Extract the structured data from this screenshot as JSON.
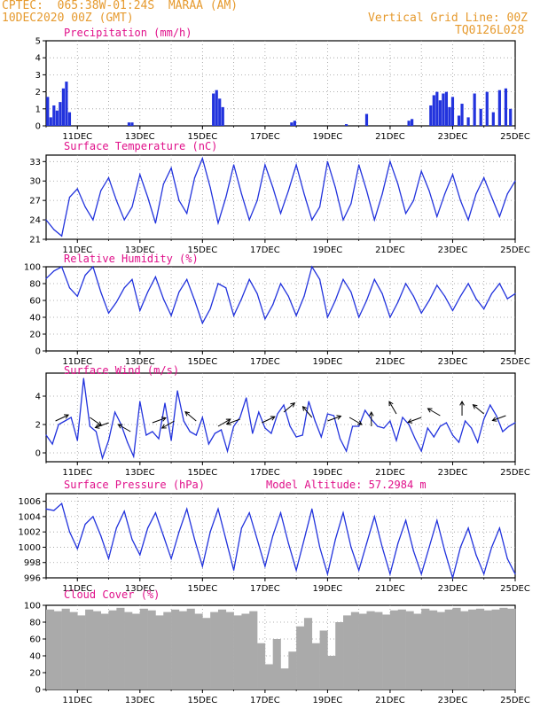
{
  "header": {
    "line1_left": "CPTEC:  065:38W-01:24S  MARAA (AM)",
    "line2_left": "10DEC2020 00Z (GMT)",
    "line2_right": "Vertical Grid Line: 00Z",
    "line3_right": "TQ0126L028"
  },
  "colors": {
    "header": "#e69a2e",
    "title": "#e0108a",
    "line": "#2233dd",
    "cloud": "#aaaaaa"
  },
  "x_ticks": [
    "11DEC",
    "13DEC",
    "15DEC",
    "17DEC",
    "19DEC",
    "21DEC",
    "23DEC",
    "25DEC"
  ],
  "chart_data": [
    {
      "type": "bar",
      "title": "Precipitation (mm/h)",
      "ylim": [
        0,
        5
      ],
      "yticks": [
        "0",
        "1",
        "2",
        "3",
        "4",
        "5"
      ],
      "x": [
        10.05,
        10.15,
        10.25,
        10.35,
        10.45,
        10.55,
        10.65,
        10.75,
        12.65,
        12.75,
        15.35,
        15.45,
        15.55,
        15.65,
        17.85,
        17.95,
        19.6,
        20.25,
        21.6,
        21.7,
        22.3,
        22.4,
        22.5,
        22.6,
        22.7,
        22.8,
        22.9,
        23.0,
        23.2,
        23.3,
        23.5,
        23.7,
        23.9,
        24.1,
        24.3,
        24.5,
        24.7,
        24.85
      ],
      "values": [
        1.7,
        0.5,
        1.2,
        0.9,
        1.4,
        2.2,
        2.6,
        0.8,
        0.2,
        0.2,
        1.9,
        2.1,
        1.6,
        1.1,
        0.2,
        0.3,
        0.1,
        0.7,
        0.3,
        0.4,
        1.2,
        1.8,
        2.0,
        1.5,
        1.9,
        2.0,
        1.1,
        1.7,
        0.6,
        1.3,
        0.5,
        1.9,
        1.0,
        2.0,
        0.8,
        2.1,
        2.2,
        1.0
      ]
    },
    {
      "type": "line",
      "title": "Surface Temperature (nC)",
      "ylim": [
        21,
        34
      ],
      "yticks": [
        "21",
        "24",
        "27",
        "30",
        "33"
      ],
      "x": [
        10.0,
        10.25,
        10.5,
        10.75,
        11.0,
        11.25,
        11.5,
        11.75,
        12.0,
        12.25,
        12.5,
        12.75,
        13.0,
        13.25,
        13.5,
        13.75,
        14.0,
        14.25,
        14.5,
        14.75,
        15.0,
        15.25,
        15.5,
        15.75,
        16.0,
        16.25,
        16.5,
        16.75,
        17.0,
        17.25,
        17.5,
        17.75,
        18.0,
        18.25,
        18.5,
        18.75,
        19.0,
        19.25,
        19.5,
        19.75,
        20.0,
        20.25,
        20.5,
        20.75,
        21.0,
        21.25,
        21.5,
        21.75,
        22.0,
        22.25,
        22.5,
        22.75,
        23.0,
        23.25,
        23.5,
        23.75,
        24.0,
        24.25,
        24.5,
        24.75,
        25.0
      ],
      "values": [
        24.0,
        22.5,
        21.5,
        27.5,
        28.8,
        26.0,
        24.0,
        28.5,
        30.5,
        27.0,
        24.0,
        26.0,
        31.0,
        27.5,
        23.5,
        29.5,
        32.0,
        27.0,
        25.0,
        30.5,
        33.5,
        29.0,
        23.5,
        27.5,
        32.5,
        28.0,
        24.0,
        27.0,
        32.5,
        29.0,
        25.0,
        28.5,
        32.5,
        28.0,
        24.0,
        26.0,
        33.0,
        29.0,
        24.0,
        26.5,
        32.5,
        28.5,
        24.0,
        28.0,
        33.0,
        29.5,
        25.0,
        27.0,
        31.5,
        28.5,
        24.5,
        28.0,
        31.0,
        27.0,
        24.0,
        28.0,
        30.5,
        27.5,
        24.5,
        28.0,
        30.0
      ]
    },
    {
      "type": "line",
      "title": "Relative Humidity (%)",
      "ylim": [
        0,
        100
      ],
      "yticks": [
        "0",
        "20",
        "40",
        "60",
        "80",
        "100"
      ],
      "x": [
        10.0,
        10.25,
        10.5,
        10.75,
        11.0,
        11.25,
        11.5,
        11.75,
        12.0,
        12.25,
        12.5,
        12.75,
        13.0,
        13.25,
        13.5,
        13.75,
        14.0,
        14.25,
        14.5,
        14.75,
        15.0,
        15.25,
        15.5,
        15.75,
        16.0,
        16.25,
        16.5,
        16.75,
        17.0,
        17.25,
        17.5,
        17.75,
        18.0,
        18.25,
        18.5,
        18.75,
        19.0,
        19.25,
        19.5,
        19.75,
        20.0,
        20.25,
        20.5,
        20.75,
        21.0,
        21.25,
        21.5,
        21.75,
        22.0,
        22.25,
        22.5,
        22.75,
        23.0,
        23.25,
        23.5,
        23.75,
        24.0,
        24.25,
        24.5,
        24.75,
        25.0
      ],
      "values": [
        86.0,
        95.0,
        100.0,
        75.0,
        65.0,
        90.0,
        100.0,
        70.0,
        45.0,
        58.0,
        75.0,
        85.0,
        48.0,
        70.0,
        88.0,
        62.0,
        42.0,
        70.0,
        85.0,
        60.0,
        33.0,
        50.0,
        80.0,
        75.0,
        42.0,
        62.0,
        85.0,
        68.0,
        38.0,
        55.0,
        80.0,
        65.0,
        42.0,
        65.0,
        100.0,
        85.0,
        40.0,
        60.0,
        85.0,
        70.0,
        40.0,
        60.0,
        85.0,
        68.0,
        40.0,
        58.0,
        80.0,
        65.0,
        45.0,
        60.0,
        78.0,
        65.0,
        48.0,
        65.0,
        80.0,
        62.0,
        50.0,
        68.0,
        80.0,
        62.0,
        68.0
      ]
    },
    {
      "type": "line",
      "title": "Surface Wind (m/s)",
      "ylim": [
        0,
        5
      ],
      "yticks": [
        "0",
        "2",
        "4"
      ],
      "x": [
        10.0,
        10.2,
        10.4,
        10.6,
        10.8,
        11.0,
        11.2,
        11.4,
        11.6,
        11.8,
        12.0,
        12.2,
        12.4,
        12.6,
        12.8,
        13.0,
        13.2,
        13.4,
        13.6,
        13.8,
        14.0,
        14.2,
        14.4,
        14.6,
        14.8,
        15.0,
        15.2,
        15.4,
        15.6,
        15.8,
        16.0,
        16.2,
        16.4,
        16.6,
        16.8,
        17.0,
        17.2,
        17.4,
        17.6,
        17.8,
        18.0,
        18.2,
        18.4,
        18.6,
        18.8,
        19.0,
        19.2,
        19.4,
        19.6,
        19.8,
        20.0,
        20.2,
        20.4,
        20.6,
        20.8,
        21.0,
        21.2,
        21.4,
        21.6,
        21.8,
        22.0,
        22.2,
        22.4,
        22.6,
        22.8,
        23.0,
        23.2,
        23.4,
        23.6,
        23.8,
        24.0,
        24.2,
        24.4,
        24.6,
        24.8,
        25.0
      ],
      "values": [
        1.5,
        1.0,
        2.1,
        2.3,
        2.5,
        1.2,
        4.7,
        2.0,
        1.7,
        0.2,
        1.2,
        2.8,
        2.1,
        1.1,
        0.3,
        3.4,
        1.5,
        1.7,
        1.3,
        3.3,
        1.2,
        4.0,
        2.3,
        1.7,
        1.5,
        2.5,
        1.0,
        1.6,
        1.8,
        0.6,
        2.0,
        2.5,
        3.6,
        1.6,
        2.8,
        1.9,
        1.6,
        2.7,
        3.2,
        2.0,
        1.4,
        1.5,
        3.4,
        2.3,
        1.4,
        2.7,
        2.6,
        1.3,
        0.6,
        2.0,
        2.0,
        2.9,
        2.4,
        2.0,
        1.9,
        2.3,
        1.2,
        2.5,
        2.1,
        1.3,
        0.6,
        1.9,
        1.4,
        2.0,
        2.2,
        1.5,
        1.1,
        2.3,
        1.9,
        1.1,
        2.4,
        3.2,
        2.6,
        1.7,
        2.0,
        2.2
      ]
    },
    {
      "type": "line",
      "title": "Surface Pressure (hPa)",
      "annotation": "Model Altitude: 57.2984 m",
      "ylim": [
        996,
        1007
      ],
      "yticks": [
        "996",
        "998",
        "1000",
        "1002",
        "1004",
        "1006"
      ],
      "x": [
        10.0,
        10.25,
        10.5,
        10.75,
        11.0,
        11.25,
        11.5,
        11.75,
        12.0,
        12.25,
        12.5,
        12.75,
        13.0,
        13.25,
        13.5,
        13.75,
        14.0,
        14.25,
        14.5,
        14.75,
        15.0,
        15.25,
        15.5,
        15.75,
        16.0,
        16.25,
        16.5,
        16.75,
        17.0,
        17.25,
        17.5,
        17.75,
        18.0,
        18.25,
        18.5,
        18.75,
        19.0,
        19.25,
        19.5,
        19.75,
        20.0,
        20.25,
        20.5,
        20.75,
        21.0,
        21.25,
        21.5,
        21.75,
        22.0,
        22.25,
        22.5,
        22.75,
        23.0,
        23.25,
        23.5,
        23.75,
        24.0,
        24.25,
        24.5,
        24.75,
        25.0
      ],
      "values": [
        1005.0,
        1004.8,
        1005.7,
        1002.0,
        999.8,
        1003.0,
        1004.0,
        1001.5,
        998.5,
        1002.5,
        1004.7,
        1001.0,
        999.0,
        1002.5,
        1004.5,
        1001.5,
        998.5,
        1002.0,
        1005.0,
        1001.0,
        997.5,
        1002.0,
        1005.0,
        1001.0,
        997.0,
        1002.5,
        1004.5,
        1001.0,
        997.5,
        1001.5,
        1004.5,
        1000.5,
        997.0,
        1001.0,
        1005.0,
        1000.0,
        996.5,
        1001.0,
        1004.5,
        1000.0,
        997.0,
        1000.5,
        1004.0,
        1000.0,
        996.5,
        1000.5,
        1003.5,
        999.5,
        996.5,
        1000.0,
        1003.5,
        999.5,
        996.0,
        1000.0,
        1002.5,
        999.0,
        996.5,
        1000.0,
        1002.5,
        998.5,
        996.5
      ]
    },
    {
      "type": "bar",
      "title": "Cloud Cover (%)",
      "ylim": [
        0,
        100
      ],
      "yticks": [
        "0",
        "20",
        "40",
        "60",
        "80",
        "100"
      ],
      "x": [
        10.0,
        10.25,
        10.5,
        10.75,
        11.0,
        11.25,
        11.5,
        11.75,
        12.0,
        12.25,
        12.5,
        12.75,
        13.0,
        13.25,
        13.5,
        13.75,
        14.0,
        14.25,
        14.5,
        14.75,
        15.0,
        15.25,
        15.5,
        15.75,
        16.0,
        16.25,
        16.5,
        16.75,
        17.0,
        17.25,
        17.5,
        17.75,
        18.0,
        18.25,
        18.5,
        18.75,
        19.0,
        19.25,
        19.5,
        19.75,
        20.0,
        20.25,
        20.5,
        20.75,
        21.0,
        21.25,
        21.5,
        21.75,
        22.0,
        22.25,
        22.5,
        22.75,
        23.0,
        23.25,
        23.5,
        23.75,
        24.0,
        24.25,
        24.5,
        24.75
      ],
      "values": [
        95,
        93,
        96,
        92,
        88,
        95,
        93,
        90,
        94,
        97,
        92,
        90,
        96,
        94,
        88,
        92,
        95,
        93,
        96,
        90,
        85,
        92,
        95,
        92,
        88,
        90,
        93,
        55,
        30,
        60,
        25,
        45,
        75,
        85,
        55,
        70,
        40,
        80,
        88,
        92,
        90,
        93,
        92,
        89,
        94,
        95,
        93,
        90,
        96,
        94,
        92,
        95,
        97,
        93,
        95,
        96,
        94,
        95,
        97,
        96
      ]
    }
  ]
}
